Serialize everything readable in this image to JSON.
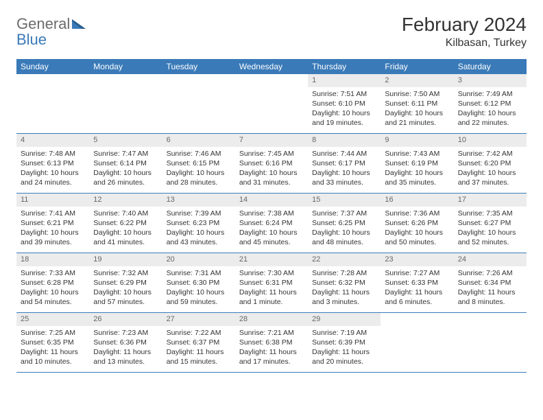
{
  "logo": {
    "part1": "General",
    "part2": "Blue"
  },
  "title": "February 2024",
  "location": "Kilbasan, Turkey",
  "colors": {
    "header_bg": "#3a7ab8",
    "header_text": "#ffffff",
    "daynum_bg": "#ececec",
    "daynum_text": "#666666",
    "body_text": "#333333",
    "logo_gray": "#6b6b6b",
    "logo_blue": "#3a7ab8",
    "border": "#3a7ab8",
    "page_bg": "#ffffff"
  },
  "day_names": [
    "Sunday",
    "Monday",
    "Tuesday",
    "Wednesday",
    "Thursday",
    "Friday",
    "Saturday"
  ],
  "weeks": [
    [
      null,
      null,
      null,
      null,
      {
        "n": "1",
        "sr": "Sunrise: 7:51 AM",
        "ss": "Sunset: 6:10 PM",
        "dl": "Daylight: 10 hours and 19 minutes."
      },
      {
        "n": "2",
        "sr": "Sunrise: 7:50 AM",
        "ss": "Sunset: 6:11 PM",
        "dl": "Daylight: 10 hours and 21 minutes."
      },
      {
        "n": "3",
        "sr": "Sunrise: 7:49 AM",
        "ss": "Sunset: 6:12 PM",
        "dl": "Daylight: 10 hours and 22 minutes."
      }
    ],
    [
      {
        "n": "4",
        "sr": "Sunrise: 7:48 AM",
        "ss": "Sunset: 6:13 PM",
        "dl": "Daylight: 10 hours and 24 minutes."
      },
      {
        "n": "5",
        "sr": "Sunrise: 7:47 AM",
        "ss": "Sunset: 6:14 PM",
        "dl": "Daylight: 10 hours and 26 minutes."
      },
      {
        "n": "6",
        "sr": "Sunrise: 7:46 AM",
        "ss": "Sunset: 6:15 PM",
        "dl": "Daylight: 10 hours and 28 minutes."
      },
      {
        "n": "7",
        "sr": "Sunrise: 7:45 AM",
        "ss": "Sunset: 6:16 PM",
        "dl": "Daylight: 10 hours and 31 minutes."
      },
      {
        "n": "8",
        "sr": "Sunrise: 7:44 AM",
        "ss": "Sunset: 6:17 PM",
        "dl": "Daylight: 10 hours and 33 minutes."
      },
      {
        "n": "9",
        "sr": "Sunrise: 7:43 AM",
        "ss": "Sunset: 6:19 PM",
        "dl": "Daylight: 10 hours and 35 minutes."
      },
      {
        "n": "10",
        "sr": "Sunrise: 7:42 AM",
        "ss": "Sunset: 6:20 PM",
        "dl": "Daylight: 10 hours and 37 minutes."
      }
    ],
    [
      {
        "n": "11",
        "sr": "Sunrise: 7:41 AM",
        "ss": "Sunset: 6:21 PM",
        "dl": "Daylight: 10 hours and 39 minutes."
      },
      {
        "n": "12",
        "sr": "Sunrise: 7:40 AM",
        "ss": "Sunset: 6:22 PM",
        "dl": "Daylight: 10 hours and 41 minutes."
      },
      {
        "n": "13",
        "sr": "Sunrise: 7:39 AM",
        "ss": "Sunset: 6:23 PM",
        "dl": "Daylight: 10 hours and 43 minutes."
      },
      {
        "n": "14",
        "sr": "Sunrise: 7:38 AM",
        "ss": "Sunset: 6:24 PM",
        "dl": "Daylight: 10 hours and 45 minutes."
      },
      {
        "n": "15",
        "sr": "Sunrise: 7:37 AM",
        "ss": "Sunset: 6:25 PM",
        "dl": "Daylight: 10 hours and 48 minutes."
      },
      {
        "n": "16",
        "sr": "Sunrise: 7:36 AM",
        "ss": "Sunset: 6:26 PM",
        "dl": "Daylight: 10 hours and 50 minutes."
      },
      {
        "n": "17",
        "sr": "Sunrise: 7:35 AM",
        "ss": "Sunset: 6:27 PM",
        "dl": "Daylight: 10 hours and 52 minutes."
      }
    ],
    [
      {
        "n": "18",
        "sr": "Sunrise: 7:33 AM",
        "ss": "Sunset: 6:28 PM",
        "dl": "Daylight: 10 hours and 54 minutes."
      },
      {
        "n": "19",
        "sr": "Sunrise: 7:32 AM",
        "ss": "Sunset: 6:29 PM",
        "dl": "Daylight: 10 hours and 57 minutes."
      },
      {
        "n": "20",
        "sr": "Sunrise: 7:31 AM",
        "ss": "Sunset: 6:30 PM",
        "dl": "Daylight: 10 hours and 59 minutes."
      },
      {
        "n": "21",
        "sr": "Sunrise: 7:30 AM",
        "ss": "Sunset: 6:31 PM",
        "dl": "Daylight: 11 hours and 1 minute."
      },
      {
        "n": "22",
        "sr": "Sunrise: 7:28 AM",
        "ss": "Sunset: 6:32 PM",
        "dl": "Daylight: 11 hours and 3 minutes."
      },
      {
        "n": "23",
        "sr": "Sunrise: 7:27 AM",
        "ss": "Sunset: 6:33 PM",
        "dl": "Daylight: 11 hours and 6 minutes."
      },
      {
        "n": "24",
        "sr": "Sunrise: 7:26 AM",
        "ss": "Sunset: 6:34 PM",
        "dl": "Daylight: 11 hours and 8 minutes."
      }
    ],
    [
      {
        "n": "25",
        "sr": "Sunrise: 7:25 AM",
        "ss": "Sunset: 6:35 PM",
        "dl": "Daylight: 11 hours and 10 minutes."
      },
      {
        "n": "26",
        "sr": "Sunrise: 7:23 AM",
        "ss": "Sunset: 6:36 PM",
        "dl": "Daylight: 11 hours and 13 minutes."
      },
      {
        "n": "27",
        "sr": "Sunrise: 7:22 AM",
        "ss": "Sunset: 6:37 PM",
        "dl": "Daylight: 11 hours and 15 minutes."
      },
      {
        "n": "28",
        "sr": "Sunrise: 7:21 AM",
        "ss": "Sunset: 6:38 PM",
        "dl": "Daylight: 11 hours and 17 minutes."
      },
      {
        "n": "29",
        "sr": "Sunrise: 7:19 AM",
        "ss": "Sunset: 6:39 PM",
        "dl": "Daylight: 11 hours and 20 minutes."
      },
      null,
      null
    ]
  ]
}
